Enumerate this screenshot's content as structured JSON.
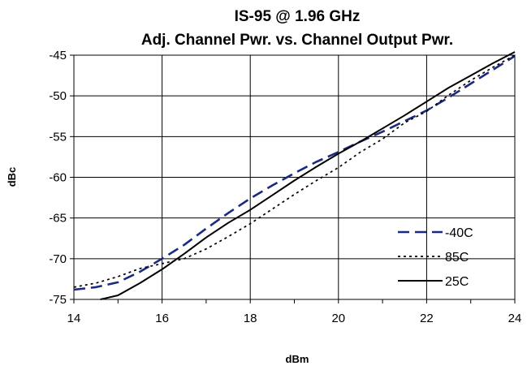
{
  "chart_data": {
    "type": "line",
    "title": "IS-95 @ 1.96 GHz",
    "subtitle": "Adj. Channel Pwr. vs. Channel Output Pwr.",
    "xlabel": "dBm",
    "ylabel": "dBc",
    "xlim": [
      14,
      24
    ],
    "ylim": [
      -75,
      -45
    ],
    "x_ticks": [
      14,
      16,
      18,
      20,
      22,
      24
    ],
    "y_ticks": [
      -45,
      -50,
      -55,
      -60,
      -65,
      -70,
      -75
    ],
    "grid": true,
    "legend_position": "bottom-right",
    "series": [
      {
        "name": "-40C",
        "style": "dashed",
        "color": "#1a2a80",
        "x": [
          14,
          14.5,
          15,
          15.5,
          16,
          16.5,
          17,
          17.5,
          18,
          18.5,
          19,
          19.5,
          20,
          20.5,
          21,
          21.5,
          22,
          22.5,
          23,
          23.5,
          24
        ],
        "y": [
          -73.8,
          -73.5,
          -72.9,
          -71.6,
          -70.0,
          -68.3,
          -66.3,
          -64.4,
          -62.6,
          -61.0,
          -59.5,
          -58.1,
          -56.9,
          -55.6,
          -54.4,
          -53.1,
          -51.8,
          -50.2,
          -48.5,
          -46.8,
          -45.1
        ]
      },
      {
        "name": "85C",
        "style": "dotted",
        "color": "#000000",
        "x": [
          14,
          14.5,
          15,
          15.5,
          16,
          16.5,
          17,
          17.5,
          18,
          18.5,
          19,
          19.5,
          20,
          20.5,
          21,
          21.5,
          22,
          22.5,
          23,
          23.5,
          24
        ],
        "y": [
          -73.5,
          -73.0,
          -72.2,
          -71.2,
          -70.6,
          -70.0,
          -68.8,
          -67.3,
          -65.7,
          -63.9,
          -62.1,
          -60.4,
          -58.8,
          -56.9,
          -55.3,
          -53.3,
          -51.9,
          -49.9,
          -48.1,
          -46.5,
          -45.0
        ]
      },
      {
        "name": "25C",
        "style": "solid",
        "color": "#000000",
        "x": [
          14.6,
          15,
          15.5,
          16,
          16.5,
          17,
          17.5,
          18,
          18.5,
          19,
          19.5,
          20,
          20.5,
          21,
          21.5,
          22,
          22.5,
          23,
          23.5,
          24
        ],
        "y": [
          -75.0,
          -74.5,
          -73.0,
          -71.3,
          -69.4,
          -67.4,
          -65.6,
          -64.0,
          -62.2,
          -60.4,
          -58.7,
          -57.1,
          -55.6,
          -54.0,
          -52.4,
          -50.7,
          -49.0,
          -47.5,
          -46.0,
          -44.6
        ]
      }
    ]
  }
}
